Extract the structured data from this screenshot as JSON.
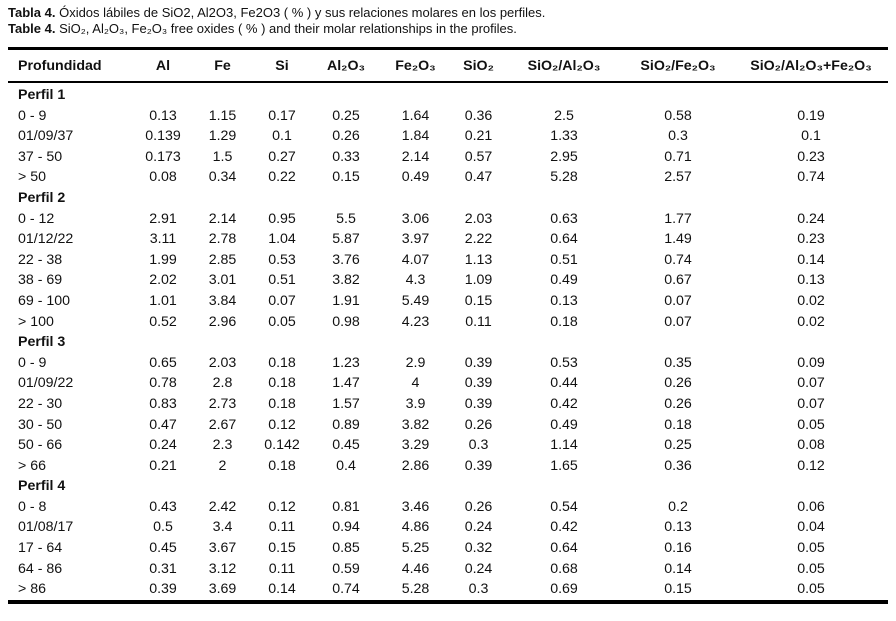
{
  "colors": {
    "background": "#ffffff",
    "text": "#111111",
    "rule": "#000000"
  },
  "caption": {
    "es_label": "Tabla 4.",
    "es_text": "Óxidos lábiles de SiO2, Al2O3, Fe2O3 ( % ) y sus relaciones molares en los perfiles.",
    "en_label": "Table 4.",
    "en_text": "SiO₂, Al₂O₃, Fe₂O₃ free oxides ( % ) and their molar relationships in the profiles."
  },
  "table": {
    "columns": [
      "Profundidad",
      "Al",
      "Fe",
      "Si",
      "Al₂O₃",
      "Fe₂O₃",
      "SiO₂",
      "SiO₂/Al₂O₃",
      "SiO₂/Fe₂O₃",
      "SiO₂/Al₂O₃+Fe₂O₃"
    ],
    "groups": [
      {
        "name": "Perfil 1",
        "rows": [
          [
            "0 - 9",
            "0.13",
            "1.15",
            "0.17",
            "0.25",
            "1.64",
            "0.36",
            "2.5",
            "0.58",
            "0.19"
          ],
          [
            "01/09/37",
            "0.139",
            "1.29",
            "0.1",
            "0.26",
            "1.84",
            "0.21",
            "1.33",
            "0.3",
            "0.1"
          ],
          [
            "37 - 50",
            "0.173",
            "1.5",
            "0.27",
            "0.33",
            "2.14",
            "0.57",
            "2.95",
            "0.71",
            "0.23"
          ],
          [
            "> 50",
            "0.08",
            "0.34",
            "0.22",
            "0.15",
            "0.49",
            "0.47",
            "5.28",
            "2.57",
            "0.74"
          ]
        ]
      },
      {
        "name": "Perfil 2",
        "rows": [
          [
            "0 - 12",
            "2.91",
            "2.14",
            "0.95",
            "5.5",
            "3.06",
            "2.03",
            "0.63",
            "1.77",
            "0.24"
          ],
          [
            "01/12/22",
            "3.11",
            "2.78",
            "1.04",
            "5.87",
            "3.97",
            "2.22",
            "0.64",
            "1.49",
            "0.23"
          ],
          [
            "22 - 38",
            "1.99",
            "2.85",
            "0.53",
            "3.76",
            "4.07",
            "1.13",
            "0.51",
            "0.74",
            "0.14"
          ],
          [
            "38 - 69",
            "2.02",
            "3.01",
            "0.51",
            "3.82",
            "4.3",
            "1.09",
            "0.49",
            "0.67",
            "0.13"
          ],
          [
            "69 - 100",
            "1.01",
            "3.84",
            "0.07",
            "1.91",
            "5.49",
            "0.15",
            "0.13",
            "0.07",
            "0.02"
          ],
          [
            "> 100",
            "0.52",
            "2.96",
            "0.05",
            "0.98",
            "4.23",
            "0.11",
            "0.18",
            "0.07",
            "0.02"
          ]
        ]
      },
      {
        "name": "Perfil 3",
        "rows": [
          [
            "0 - 9",
            "0.65",
            "2.03",
            "0.18",
            "1.23",
            "2.9",
            "0.39",
            "0.53",
            "0.35",
            "0.09"
          ],
          [
            "01/09/22",
            "0.78",
            "2.8",
            "0.18",
            "1.47",
            "4",
            "0.39",
            "0.44",
            "0.26",
            "0.07"
          ],
          [
            "22 - 30",
            "0.83",
            "2.73",
            "0.18",
            "1.57",
            "3.9",
            "0.39",
            "0.42",
            "0.26",
            "0.07"
          ],
          [
            "30 - 50",
            "0.47",
            "2.67",
            "0.12",
            "0.89",
            "3.82",
            "0.26",
            "0.49",
            "0.18",
            "0.05"
          ],
          [
            "50 - 66",
            "0.24",
            "2.3",
            "0.142",
            "0.45",
            "3.29",
            "0.3",
            "1.14",
            "0.25",
            "0.08"
          ],
          [
            "> 66",
            "0.21",
            "2",
            "0.18",
            "0.4",
            "2.86",
            "0.39",
            "1.65",
            "0.36",
            "0.12"
          ]
        ]
      },
      {
        "name": "Perfil 4",
        "rows": [
          [
            "0 - 8",
            "0.43",
            "2.42",
            "0.12",
            "0.81",
            "3.46",
            "0.26",
            "0.54",
            "0.2",
            "0.06"
          ],
          [
            "01/08/17",
            "0.5",
            "3.4",
            "0.11",
            "0.94",
            "4.86",
            "0.24",
            "0.42",
            "0.13",
            "0.04"
          ],
          [
            "17 - 64",
            "0.45",
            "3.67",
            "0.15",
            "0.85",
            "5.25",
            "0.32",
            "0.64",
            "0.16",
            "0.05"
          ],
          [
            "64 - 86",
            "0.31",
            "3.12",
            "0.11",
            "0.59",
            "4.46",
            "0.24",
            "0.68",
            "0.14",
            "0.05"
          ],
          [
            "> 86",
            "0.39",
            "3.69",
            "0.14",
            "0.74",
            "5.28",
            "0.3",
            "0.69",
            "0.15",
            "0.05"
          ]
        ]
      }
    ]
  }
}
